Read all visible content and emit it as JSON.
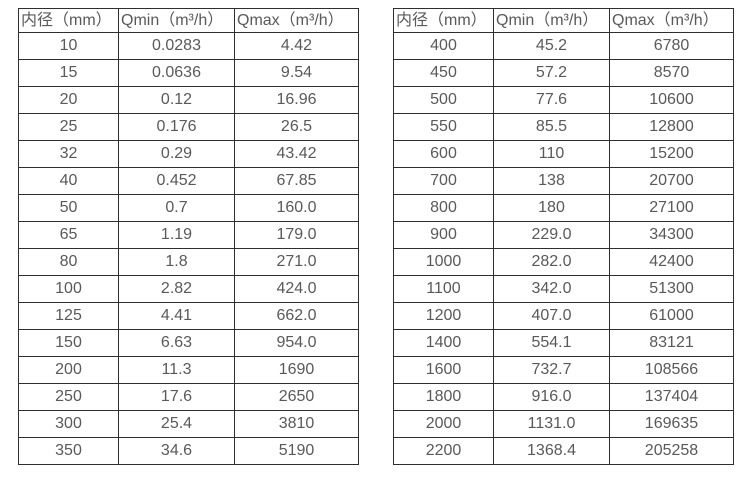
{
  "page": {
    "background_color": "#ffffff",
    "border_color": "#2e2e2e",
    "text_color": "#595959"
  },
  "chart_data": [
    {
      "type": "table",
      "title": "",
      "headers": [
        "内径（mm）",
        "Qmin（m³/h）",
        "Qmax（m³/h）"
      ],
      "rows": [
        [
          "10",
          "0.0283",
          "4.42"
        ],
        [
          "15",
          "0.0636",
          "9.54"
        ],
        [
          "20",
          "0.12",
          "16.96"
        ],
        [
          "25",
          "0.176",
          "26.5"
        ],
        [
          "32",
          "0.29",
          "43.42"
        ],
        [
          "40",
          "0.452",
          "67.85"
        ],
        [
          "50",
          "0.7",
          "160.0"
        ],
        [
          "65",
          "1.19",
          "179.0"
        ],
        [
          "80",
          "1.8",
          "271.0"
        ],
        [
          "100",
          "2.82",
          "424.0"
        ],
        [
          "125",
          "4.41",
          "662.0"
        ],
        [
          "150",
          "6.63",
          "954.0"
        ],
        [
          "200",
          "11.3",
          "1690"
        ],
        [
          "250",
          "17.6",
          "2650"
        ],
        [
          "300",
          "25.4",
          "3810"
        ],
        [
          "350",
          "34.6",
          "5190"
        ]
      ]
    },
    {
      "type": "table",
      "title": "",
      "headers": [
        "内径（mm）",
        "Qmin（m³/h）",
        "Qmax（m³/h）"
      ],
      "rows": [
        [
          "400",
          "45.2",
          "6780"
        ],
        [
          "450",
          "57.2",
          "8570"
        ],
        [
          "500",
          "77.6",
          "10600"
        ],
        [
          "550",
          "85.5",
          "12800"
        ],
        [
          "600",
          "110",
          "15200"
        ],
        [
          "700",
          "138",
          "20700"
        ],
        [
          "800",
          "180",
          "27100"
        ],
        [
          "900",
          "229.0",
          "34300"
        ],
        [
          "1000",
          "282.0",
          "42400"
        ],
        [
          "1100",
          "342.0",
          "51300"
        ],
        [
          "1200",
          "407.0",
          "61000"
        ],
        [
          "1400",
          "554.1",
          "83121"
        ],
        [
          "1600",
          "732.7",
          "108566"
        ],
        [
          "1800",
          "916.0",
          "137404"
        ],
        [
          "2000",
          "1131.0",
          "169635"
        ],
        [
          "2200",
          "1368.4",
          "205258"
        ]
      ]
    }
  ]
}
